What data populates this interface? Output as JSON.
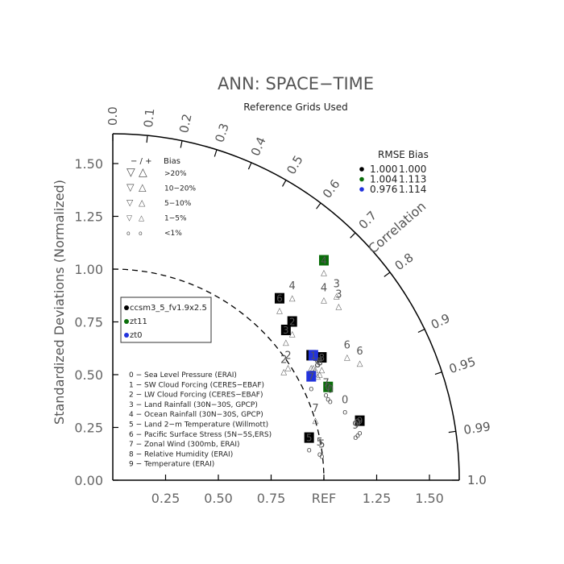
{
  "chart_data": {
    "type": "scatter",
    "title": "ANN: SPACE−TIME",
    "subtitle": "Reference Grids Used",
    "ylabel": "Standardized Deviations (Normalized)",
    "x_ticks": [
      "0.25",
      "0.50",
      "0.75",
      "REF",
      "1.25",
      "1.50"
    ],
    "y_ticks": [
      "0.00",
      "0.25",
      "0.50",
      "0.75",
      "1.00",
      "1.25",
      "1.50"
    ],
    "correlation_label": "Correlation",
    "correlation_ticks": [
      {
        "value": 0.0,
        "label": "0.0"
      },
      {
        "value": 0.1,
        "label": "0.1"
      },
      {
        "value": 0.2,
        "label": "0.2"
      },
      {
        "value": 0.3,
        "label": "0.3"
      },
      {
        "value": 0.4,
        "label": "0.4"
      },
      {
        "value": 0.5,
        "label": "0.5"
      },
      {
        "value": 0.6,
        "label": "0.6"
      },
      {
        "value": 0.7,
        "label": "0.7"
      },
      {
        "value": 0.8,
        "label": "0.8"
      },
      {
        "value": 0.9,
        "label": "0.9"
      },
      {
        "value": 0.95,
        "label": "0.95"
      },
      {
        "value": 0.99,
        "label": "0.99"
      },
      {
        "value": 1.0,
        "label": "1.0"
      }
    ],
    "bias_legend": {
      "header_left": "− / +",
      "header_right": "Bias",
      "rows": [
        {
          "neg": "▽",
          "pos": "△",
          "label": ">20%"
        },
        {
          "neg": "▽",
          "pos": "△",
          "label": "10−20%"
        },
        {
          "neg": "▽",
          "pos": "△",
          "label": "5−10%"
        },
        {
          "neg": "▽",
          "pos": "△",
          "label": "1−5%"
        },
        {
          "neg": "o",
          "pos": "o",
          "label": "<1%"
        }
      ]
    },
    "rmse_legend": {
      "header": "RMSE  Bias",
      "rows": [
        {
          "color": "#000000",
          "rmse": "1.000",
          "bias": "1.000"
        },
        {
          "color": "#0a6e0a",
          "rmse": "1.004",
          "bias": "1.113"
        },
        {
          "color": "#2233dd",
          "rmse": "0.976",
          "bias": "1.114"
        }
      ]
    },
    "series": [
      {
        "name": "ccsm3_5_fv1.9x2.5",
        "color": "#000000"
      },
      {
        "name": "zt11",
        "color": "#0a6e0a"
      },
      {
        "name": "zt0",
        "color": "#2233dd"
      }
    ],
    "variables": [
      "0 − Sea Level Pressure (ERAI)",
      "1 − SW Cloud Forcing (CERES−EBAF)",
      "2 − LW Cloud Forcing (CERES−EBAF)",
      "3 − Land Rainfall (30N−30S, GPCP)",
      "4 − Ocean Rainfall (30N−30S, GPCP)",
      "5 − Land 2−m Temperature (Willmott)",
      "6 − Pacific Surface Stress (5N−5S,ERS)",
      "7 − Zonal Wind (300mb, ERAI)",
      "8 − Relative Humidity (ERAI)",
      "9 − Temperature (ERAI)"
    ],
    "points": [
      {
        "series": 0,
        "label": "0",
        "style": "plain",
        "x": 1.1,
        "y": 0.38,
        "marker": "o"
      },
      {
        "series": 0,
        "label": "1",
        "style": "box",
        "x": 0.94,
        "y": 0.59,
        "marker": "△"
      },
      {
        "series": 0,
        "label": "2",
        "style": "box",
        "x": 0.85,
        "y": 0.75,
        "marker": "△"
      },
      {
        "series": 0,
        "label": "3",
        "style": "box",
        "x": 0.82,
        "y": 0.71,
        "marker": "△"
      },
      {
        "series": 0,
        "label": "4",
        "style": "plain",
        "x": 0.85,
        "y": 0.92,
        "marker": "△"
      },
      {
        "series": 0,
        "label": "5",
        "style": "box",
        "x": 0.93,
        "y": 0.2,
        "marker": "o"
      },
      {
        "series": 0,
        "label": "6",
        "style": "box",
        "x": 0.79,
        "y": 0.86,
        "marker": "△"
      },
      {
        "series": 0,
        "label": "7",
        "style": "plain",
        "x": 0.96,
        "y": 0.34,
        "marker": "△"
      },
      {
        "series": 0,
        "label": "8",
        "style": "box",
        "x": 0.99,
        "y": 0.58,
        "marker": "△"
      },
      {
        "series": 0,
        "label": "9",
        "style": "box",
        "x": 1.17,
        "y": 0.28,
        "marker": "o"
      },
      {
        "series": 1,
        "label": "0",
        "style": "box",
        "x": 1.02,
        "y": 0.44,
        "marker": "o"
      },
      {
        "series": 1,
        "label": "1",
        "style": "plain",
        "x": 0.96,
        "y": 0.58,
        "marker": "△"
      },
      {
        "series": 1,
        "label": "2",
        "style": "plain",
        "x": 0.83,
        "y": 0.59,
        "marker": "△"
      },
      {
        "series": 1,
        "label": "3",
        "style": "plain",
        "x": 1.06,
        "y": 0.93,
        "marker": "△"
      },
      {
        "series": 1,
        "label": "4",
        "style": "box",
        "x": 1.0,
        "y": 1.04,
        "marker": "△"
      },
      {
        "series": 1,
        "label": "5",
        "style": "plain",
        "x": 0.98,
        "y": 0.18,
        "marker": "o"
      },
      {
        "series": 1,
        "label": "6",
        "style": "plain",
        "x": 1.11,
        "y": 0.64,
        "marker": "△"
      },
      {
        "series": 1,
        "label": "7",
        "style": "plain",
        "x": 1.01,
        "y": 0.46,
        "marker": "o"
      },
      {
        "series": 1,
        "label": "8",
        "style": "plain",
        "x": 0.97,
        "y": 0.55,
        "marker": "△"
      },
      {
        "series": 1,
        "label": "9",
        "style": "plain",
        "x": 1.15,
        "y": 0.26,
        "marker": "o"
      },
      {
        "series": 2,
        "label": "0",
        "style": "plain",
        "x": 1.03,
        "y": 0.43,
        "marker": "o"
      },
      {
        "series": 2,
        "label": "1",
        "style": "box",
        "x": 0.95,
        "y": 0.59,
        "marker": "△"
      },
      {
        "series": 2,
        "label": "2",
        "style": "plain",
        "x": 0.81,
        "y": 0.57,
        "marker": "△"
      },
      {
        "series": 2,
        "label": "3",
        "style": "plain",
        "x": 1.07,
        "y": 0.88,
        "marker": "△"
      },
      {
        "series": 2,
        "label": "4",
        "style": "plain",
        "x": 1.0,
        "y": 0.91,
        "marker": "△"
      },
      {
        "series": 2,
        "label": "5",
        "style": "plain",
        "x": 0.99,
        "y": 0.17,
        "marker": "o"
      },
      {
        "series": 2,
        "label": "6",
        "style": "plain",
        "x": 1.17,
        "y": 0.61,
        "marker": "△"
      },
      {
        "series": 2,
        "label": "7",
        "style": "box",
        "x": 0.94,
        "y": 0.49,
        "marker": "o"
      },
      {
        "series": 2,
        "label": "8",
        "style": "plain",
        "x": 0.98,
        "y": 0.56,
        "marker": "△"
      },
      {
        "series": 2,
        "label": "9",
        "style": "plain",
        "x": 1.16,
        "y": 0.27,
        "marker": "o"
      }
    ]
  }
}
